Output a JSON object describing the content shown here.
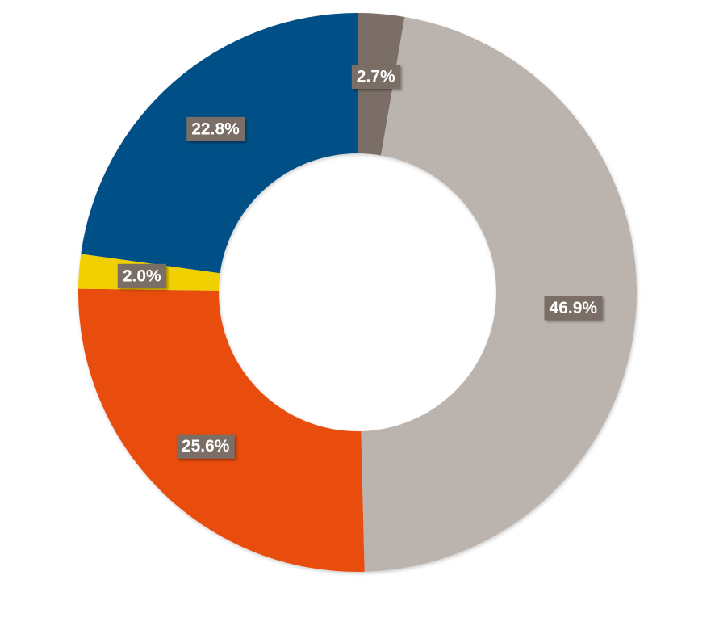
{
  "chart_data": {
    "type": "donut",
    "values": [
      2.7,
      46.9,
      25.6,
      2.0,
      22.8
    ],
    "value_labels": [
      "2.7%",
      "46.9%",
      "25.6%",
      "2.0%",
      "22.8%"
    ],
    "colors": [
      "#7a6e66",
      "#bab3ae",
      "#e84e10",
      "#f0d000",
      "#004f86"
    ]
  }
}
